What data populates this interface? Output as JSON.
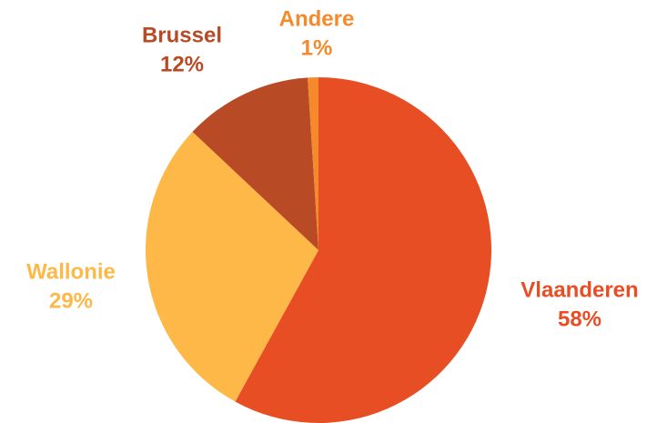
{
  "chart_data": {
    "type": "pie",
    "categories": [
      "Vlaanderen",
      "Wallonie",
      "Brussel",
      "Andere"
    ],
    "values": [
      58,
      29,
      12,
      1
    ],
    "value_labels": [
      "58%",
      "29%",
      "12%",
      "1%"
    ],
    "colors": [
      "#e84e24",
      "#fdb848",
      "#b84a25",
      "#f58a2c"
    ]
  }
}
